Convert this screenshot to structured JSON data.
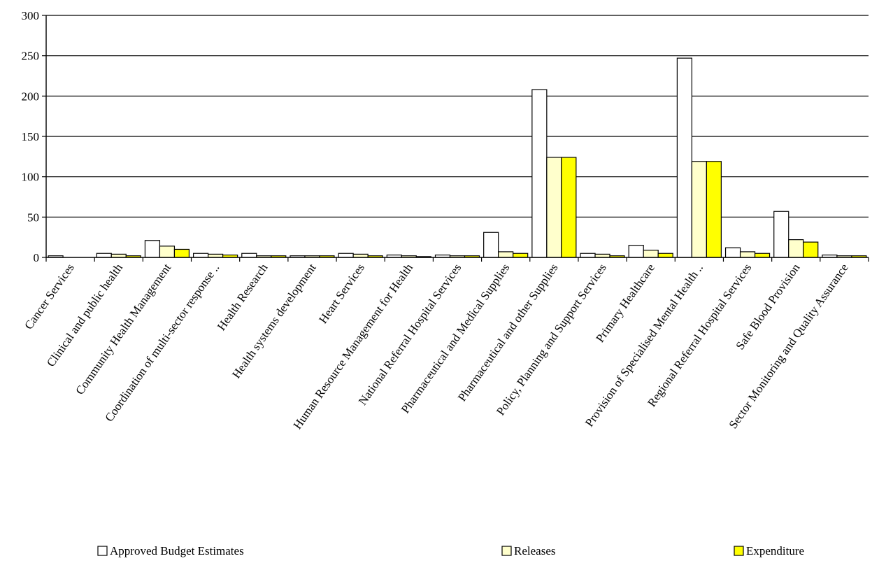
{
  "chart_data": {
    "type": "bar",
    "title": "",
    "xlabel": "",
    "ylabel": "",
    "ylim": [
      0,
      300
    ],
    "yticks": [
      0,
      50,
      100,
      150,
      200,
      250,
      300
    ],
    "grid": "horizontal",
    "legend_position": "bottom",
    "categories": [
      "Cancer Services",
      "Clinical and public health",
      "Community Health Management",
      "Coordination of multi-sector response ..",
      "Health Research",
      "Health systems development",
      "Heart Services",
      "Human Resource Management for Health",
      "National Referral Hospital Services",
      "Pharmaceutical and Medical Supplies",
      "Pharmaceutical and other Supplies",
      "Policy, Planning and Support Services",
      "Primary Healthcare",
      "Provision of Specialised Mental Health ..",
      "Regional Referral Hospital Services",
      "Safe Blood Provision",
      "Sector Monitoring and Quality Assurance"
    ],
    "series": [
      {
        "name": "Approved Budget Estimates",
        "color": "#ffffff",
        "values": [
          2,
          5,
          21,
          5,
          5,
          2,
          5,
          3,
          3,
          31,
          208,
          5,
          15,
          247,
          12,
          57,
          3
        ]
      },
      {
        "name": "Releases",
        "color": "#ffffcc",
        "values": [
          0,
          4,
          14,
          4,
          2,
          2,
          4,
          2,
          2,
          7,
          124,
          4,
          9,
          119,
          7,
          22,
          2
        ]
      },
      {
        "name": "Expenditure",
        "color": "#ffff00",
        "values": [
          0,
          2,
          10,
          3,
          2,
          2,
          2,
          1,
          2,
          5,
          124,
          2,
          5,
          119,
          5,
          19,
          2
        ]
      }
    ]
  }
}
